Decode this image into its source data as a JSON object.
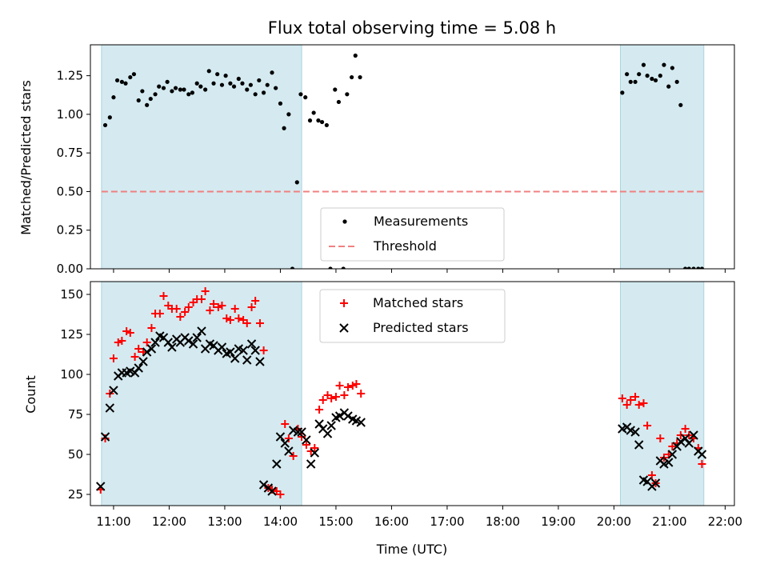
{
  "title": "Flux total observing time = 5.08 h",
  "colors": {
    "shade": "#d4eaf0",
    "shade_edge": "#a8d4e0",
    "threshold": "#f08080",
    "measurement": "#000000",
    "matched": "#ff0000",
    "predicted": "#000000"
  },
  "chart_data": [
    {
      "type": "scatter",
      "ylabel": "Matched/Predicted stars",
      "xlim": [
        "10:35",
        "22:10"
      ],
      "ylim": [
        0,
        1.45
      ],
      "yticks": [
        "0.00",
        "0.25",
        "0.50",
        "0.75",
        "1.00",
        "1.25"
      ],
      "yticks_values": [
        0,
        0.25,
        0.5,
        0.75,
        1.0,
        1.25
      ],
      "shaded_intervals": [
        [
          "10:47",
          "14:23"
        ],
        [
          "20:07",
          "21:37"
        ]
      ],
      "threshold": 0.5,
      "legend": {
        "placement": "lower-center",
        "entries": [
          "Measurements",
          "Threshold"
        ]
      },
      "series": [
        {
          "name": "Measurements",
          "x": [
            "10:51",
            "10:56",
            "11:00",
            "11:04",
            "11:09",
            "11:13",
            "11:18",
            "11:22",
            "11:27",
            "11:31",
            "11:36",
            "11:40",
            "11:45",
            "11:49",
            "11:54",
            "11:58",
            "12:03",
            "12:07",
            "12:12",
            "12:16",
            "12:21",
            "12:25",
            "12:30",
            "12:34",
            "12:39",
            "12:43",
            "12:48",
            "12:52",
            "12:57",
            "13:01",
            "13:06",
            "13:10",
            "13:15",
            "13:19",
            "13:24",
            "13:28",
            "13:33",
            "13:37",
            "13:42",
            "13:46",
            "13:51",
            "13:55",
            "14:00",
            "14:04",
            "14:09",
            "14:13",
            "14:18",
            "14:22",
            "14:27",
            "14:32",
            "14:36",
            "14:41",
            "14:45",
            "14:50",
            "14:54",
            "14:59",
            "15:03",
            "15:08",
            "15:12",
            "15:17",
            "15:21",
            "15:26",
            "20:09",
            "20:14",
            "20:18",
            "20:23",
            "20:27",
            "20:32",
            "20:36",
            "20:41",
            "20:45",
            "20:50",
            "20:54",
            "20:59",
            "21:03",
            "21:08",
            "21:12",
            "21:17",
            "21:21",
            "21:26",
            "21:31",
            "21:35"
          ],
          "y": [
            0.93,
            0.98,
            1.11,
            1.22,
            1.21,
            1.2,
            1.24,
            1.26,
            1.09,
            1.15,
            1.06,
            1.1,
            1.13,
            1.18,
            1.17,
            1.21,
            1.15,
            1.17,
            1.16,
            1.16,
            1.13,
            1.14,
            1.2,
            1.18,
            1.16,
            1.28,
            1.2,
            1.26,
            1.19,
            1.25,
            1.2,
            1.18,
            1.23,
            1.2,
            1.16,
            1.19,
            1.13,
            1.22,
            1.14,
            1.19,
            1.27,
            1.17,
            1.07,
            0.91,
            1.0,
            0.0,
            0.56,
            1.13,
            1.11,
            0.96,
            1.01,
            0.96,
            0.95,
            0.93,
            0.0,
            1.16,
            1.08,
            0.0,
            1.13,
            1.24,
            1.38,
            1.24,
            1.14,
            1.26,
            1.21,
            1.21,
            1.26,
            1.32,
            1.25,
            1.23,
            1.22,
            1.25,
            1.32,
            1.18,
            1.3,
            1.21,
            1.06,
            0.0,
            0.0,
            0.0,
            0.0,
            0.0
          ]
        }
      ]
    },
    {
      "type": "scatter",
      "xlabel": "Time (UTC)",
      "ylabel": "Count",
      "xlim": [
        "10:35",
        "22:10"
      ],
      "ylim": [
        18,
        158
      ],
      "xticks": [
        "11:00",
        "12:00",
        "13:00",
        "14:00",
        "15:00",
        "16:00",
        "17:00",
        "18:00",
        "19:00",
        "20:00",
        "21:00",
        "22:00"
      ],
      "yticks": [
        "25",
        "50",
        "75",
        "100",
        "125",
        "150"
      ],
      "yticks_values": [
        25,
        50,
        75,
        100,
        125,
        150
      ],
      "shaded_intervals": [
        [
          "10:47",
          "14:23"
        ],
        [
          "20:07",
          "21:37"
        ]
      ],
      "legend": {
        "placement": "top-center",
        "entries": [
          "Matched stars",
          "Predicted stars"
        ]
      },
      "series": [
        {
          "name": "Matched stars",
          "x": [
            "10:46",
            "10:51",
            "10:56",
            "11:00",
            "11:05",
            "11:09",
            "11:14",
            "11:18",
            "11:23",
            "11:27",
            "11:32",
            "11:36",
            "11:41",
            "11:45",
            "11:50",
            "11:54",
            "11:59",
            "12:03",
            "12:08",
            "12:12",
            "12:17",
            "12:21",
            "12:26",
            "12:30",
            "12:35",
            "12:39",
            "12:44",
            "12:48",
            "12:53",
            "12:57",
            "13:02",
            "13:06",
            "13:11",
            "13:15",
            "13:20",
            "13:24",
            "13:29",
            "13:33",
            "13:38",
            "13:42",
            "13:47",
            "13:51",
            "13:56",
            "14:00",
            "14:05",
            "14:09",
            "14:14",
            "14:19",
            "14:23",
            "14:28",
            "14:33",
            "14:37",
            "14:42",
            "14:46",
            "14:51",
            "14:55",
            "15:00",
            "15:04",
            "15:09",
            "15:13",
            "15:18",
            "15:22",
            "15:27",
            "20:09",
            "20:14",
            "20:18",
            "20:23",
            "20:27",
            "20:32",
            "20:36",
            "20:41",
            "20:45",
            "20:50",
            "20:54",
            "20:59",
            "21:03",
            "21:08",
            "21:12",
            "21:17",
            "21:21",
            "21:26",
            "21:31",
            "21:35"
          ],
          "y": [
            28,
            60,
            88,
            110,
            120,
            121,
            127,
            126,
            111,
            116,
            114,
            120,
            129,
            138,
            138,
            149,
            143,
            141,
            141,
            136,
            139,
            142,
            145,
            147,
            147,
            152,
            140,
            144,
            142,
            143,
            135,
            134,
            141,
            135,
            134,
            132,
            142,
            146,
            132,
            115,
            29,
            28,
            27,
            25,
            69,
            60,
            49,
            66,
            61,
            56,
            52,
            54,
            78,
            84,
            87,
            85,
            86,
            93,
            87,
            92,
            93,
            94,
            88,
            85,
            81,
            84,
            86,
            81,
            82,
            68,
            37,
            32,
            60,
            48,
            50,
            55,
            57,
            62,
            66,
            62,
            60,
            54,
            44
          ]
        },
        {
          "name": "Predicted stars",
          "x": [
            "10:46",
            "10:51",
            "10:56",
            "11:00",
            "11:05",
            "11:09",
            "11:14",
            "11:18",
            "11:23",
            "11:27",
            "11:32",
            "11:36",
            "11:41",
            "11:45",
            "11:50",
            "11:54",
            "11:59",
            "12:03",
            "12:08",
            "12:12",
            "12:17",
            "12:21",
            "12:26",
            "12:30",
            "12:35",
            "12:39",
            "12:44",
            "12:48",
            "12:53",
            "12:57",
            "13:02",
            "13:06",
            "13:11",
            "13:15",
            "13:20",
            "13:24",
            "13:29",
            "13:33",
            "13:38",
            "13:42",
            "13:47",
            "13:51",
            "13:56",
            "14:00",
            "14:05",
            "14:09",
            "14:14",
            "14:19",
            "14:23",
            "14:28",
            "14:33",
            "14:37",
            "14:42",
            "14:46",
            "14:51",
            "14:55",
            "15:00",
            "15:04",
            "15:09",
            "15:13",
            "15:18",
            "15:22",
            "15:27",
            "20:09",
            "20:14",
            "20:18",
            "20:23",
            "20:27",
            "20:32",
            "20:36",
            "20:41",
            "20:45",
            "20:50",
            "20:54",
            "20:59",
            "21:03",
            "21:08",
            "21:12",
            "21:17",
            "21:21",
            "21:26",
            "21:31",
            "21:35"
          ],
          "y": [
            30,
            61,
            79,
            90,
            99,
            101,
            101,
            102,
            101,
            104,
            108,
            114,
            116,
            120,
            124,
            123,
            120,
            117,
            122,
            120,
            123,
            121,
            119,
            123,
            127,
            116,
            119,
            118,
            115,
            117,
            113,
            114,
            110,
            116,
            115,
            109,
            119,
            115,
            108,
            31,
            29,
            27,
            44,
            61,
            57,
            52,
            65,
            64,
            64,
            59,
            44,
            51,
            69,
            66,
            63,
            68,
            73,
            74,
            76,
            74,
            72,
            71,
            70,
            66,
            67,
            65,
            64,
            56,
            34,
            33,
            30,
            32,
            46,
            44,
            45,
            50,
            55,
            58,
            60,
            57,
            62,
            52,
            50
          ]
        }
      ]
    }
  ]
}
